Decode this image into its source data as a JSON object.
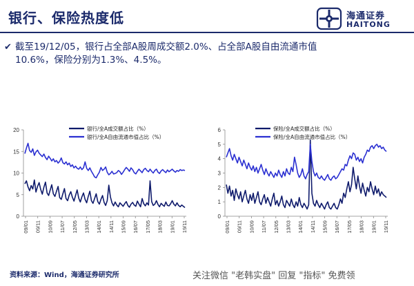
{
  "header": {
    "title": "银行、保险热度低",
    "logo_cn": "海通证券",
    "logo_en": "HAITONG"
  },
  "bullet": {
    "line1": "截至19/12/05，银行占全部A股周成交额2.0%、占全部A股自由流通市值",
    "line2": "10.6%，保险分别为1.3%、4.5%。"
  },
  "footer": {
    "source": "资料来源：Wind，海通证券研究所",
    "watermark": "关注微信 \"老韩实盘\" 回复 \"指标\" 免费领"
  },
  "colors": {
    "dark_series": "#0e1a6b",
    "light_series": "#2a2fd1",
    "text": "#1b2a6b"
  },
  "chart_data": [
    {
      "type": "line",
      "ylim": [
        0,
        20
      ],
      "yticks": [
        0,
        5,
        10,
        15,
        20
      ],
      "xticks": [
        "09/01",
        "09/11",
        "10/09",
        "11/07",
        "12/05",
        "13/03",
        "14/01",
        "14/11",
        "15/09",
        "16/07",
        "17/05",
        "18/03",
        "19/01",
        "19/11"
      ],
      "series": [
        {
          "name": "银行/全A成交额占比（%）",
          "values": [
            7.5,
            8.2,
            6.8,
            5.9,
            7.1,
            6.3,
            8.4,
            5.6,
            6.9,
            7.8,
            6.2,
            5.1,
            6.7,
            7.9,
            5.4,
            4.8,
            6.1,
            7.3,
            5.2,
            4.6,
            5.8,
            6.9,
            4.3,
            3.9,
            5.2,
            6.4,
            4.1,
            3.6,
            4.9,
            5.7,
            4.4,
            3.5,
            4.8,
            6.1,
            4.2,
            3.3,
            4.5,
            5.4,
            3.9,
            3.1,
            4.6,
            5.8,
            3.6,
            3.0,
            4.1,
            5.2,
            3.4,
            2.8,
            3.9,
            4.8,
            3.2,
            2.5,
            3.6,
            7.2,
            4.5,
            3.1,
            2.4,
            3.3,
            2.6,
            2.2,
            3.1,
            2.7,
            2.3,
            2.9,
            3.4,
            2.5,
            2.1,
            2.8,
            3.2,
            2.6,
            2.3,
            3.5,
            2.8,
            2.2,
            4.1,
            2.9,
            2.4,
            3.1,
            2.6,
            8.2,
            3.4,
            2.5,
            2.8,
            3.6,
            2.7,
            2.2,
            3.0,
            2.6,
            2.3,
            3.3,
            2.5,
            2.4,
            2.9,
            3.6,
            2.8,
            2.4,
            3.1,
            2.5,
            2.2,
            2.6,
            2.3,
            2.0
          ]
        },
        {
          "name": "银行/全A自由流通市值占比（%）",
          "values": [
            14.5,
            15.8,
            16.9,
            15.2,
            14.8,
            15.6,
            14.1,
            14.9,
            15.3,
            14.6,
            14.2,
            13.8,
            14.4,
            13.6,
            13.1,
            13.9,
            13.4,
            12.8,
            13.3,
            12.6,
            12.9,
            12.3,
            12.7,
            13.5,
            12.4,
            12.1,
            12.6,
            11.9,
            12.3,
            11.5,
            11.9,
            11.2,
            11.6,
            11.1,
            10.9,
            11.4,
            10.8,
            11.2,
            12.6,
            11.1,
            10.6,
            11.2,
            10.4,
            9.8,
            9.1,
            8.9,
            9.6,
            10.2,
            11.3,
            10.6,
            10.9,
            11.4,
            10.2,
            9.6,
            9.9,
            10.4,
            9.8,
            9.9,
            10.1,
            10.6,
            10.3,
            9.7,
            10.2,
            10.8,
            11.3,
            10.9,
            10.4,
            11.2,
            10.8,
            10.1,
            9.8,
            10.4,
            10.9,
            10.5,
            10.1,
            10.8,
            11.1,
            10.6,
            10.3,
            10.9,
            10.4,
            10.0,
            10.6,
            10.9,
            10.2,
            9.9,
            10.5,
            10.8,
            10.4,
            10.1,
            10.7,
            10.3,
            10.6,
            10.9,
            10.5,
            10.2,
            10.6,
            10.4,
            10.8,
            10.6,
            10.7,
            10.6
          ]
        }
      ]
    },
    {
      "type": "line",
      "ylim": [
        0,
        6
      ],
      "yticks": [
        0,
        1,
        2,
        3,
        4,
        5,
        6
      ],
      "xticks": [
        "09/01",
        "09/11",
        "10/09",
        "11/07",
        "12/05",
        "13/03",
        "14/01",
        "14/11",
        "15/09",
        "16/07",
        "17/05",
        "18/03",
        "19/01",
        "19/11"
      ],
      "series": [
        {
          "name": "保险/全A成交额占比（%）",
          "values": [
            2.2,
            1.6,
            2.1,
            1.4,
            1.8,
            1.1,
            1.9,
            1.5,
            1.2,
            1.7,
            1.0,
            1.4,
            1.8,
            1.2,
            0.9,
            1.5,
            1.1,
            1.6,
            0.9,
            1.3,
            1.7,
            1.0,
            0.8,
            1.2,
            1.5,
            0.9,
            1.3,
            1.0,
            0.7,
            1.2,
            1.6,
            0.8,
            1.1,
            0.7,
            1.0,
            1.4,
            0.8,
            0.6,
            1.1,
            0.9,
            0.7,
            1.2,
            0.8,
            0.6,
            1.0,
            0.7,
            1.3,
            0.8,
            0.6,
            0.9,
            0.7,
            0.5,
            0.8,
            5.3,
            1.6,
            0.9,
            0.7,
            1.1,
            0.8,
            0.6,
            0.9,
            0.7,
            0.5,
            0.8,
            1.0,
            0.6,
            0.5,
            0.7,
            0.9,
            0.6,
            0.5,
            0.8,
            1.2,
            0.9,
            1.6,
            1.3,
            1.9,
            2.4,
            1.7,
            2.2,
            3.4,
            2.6,
            1.9,
            2.8,
            2.1,
            1.6,
            2.3,
            1.8,
            1.4,
            2.0,
            1.7,
            2.4,
            1.9,
            1.5,
            2.1,
            1.6,
            1.9,
            1.4,
            1.7,
            1.5,
            1.4,
            1.3
          ]
        },
        {
          "name": "保险/全A自由流通市值占比（%）",
          "values": [
            4.1,
            4.4,
            4.7,
            4.2,
            3.9,
            4.3,
            4.0,
            3.7,
            4.1,
            3.8,
            3.5,
            3.9,
            3.6,
            3.3,
            3.7,
            3.4,
            3.2,
            3.5,
            3.1,
            3.4,
            3.0,
            3.3,
            3.6,
            3.2,
            2.9,
            3.3,
            3.0,
            2.8,
            3.1,
            2.9,
            2.7,
            3.0,
            2.8,
            3.2,
            2.9,
            2.7,
            3.1,
            2.8,
            3.3,
            3.0,
            2.9,
            3.4,
            3.1,
            4.1,
            3.6,
            3.0,
            2.7,
            2.9,
            3.3,
            2.8,
            2.6,
            2.9,
            3.1,
            5.0,
            3.8,
            3.1,
            2.8,
            3.0,
            2.7,
            2.6,
            2.8,
            2.6,
            2.5,
            2.7,
            2.9,
            2.6,
            2.5,
            2.7,
            2.8,
            2.6,
            2.7,
            2.9,
            3.1,
            3.3,
            3.2,
            3.6,
            3.5,
            3.9,
            4.2,
            4.0,
            4.4,
            4.3,
            3.9,
            4.1,
            3.8,
            4.0,
            3.7,
            4.1,
            4.3,
            4.6,
            4.5,
            4.8,
            4.9,
            4.7,
            4.9,
            5.0,
            4.8,
            4.9,
            4.7,
            4.8,
            4.6,
            4.5
          ]
        }
      ]
    }
  ]
}
